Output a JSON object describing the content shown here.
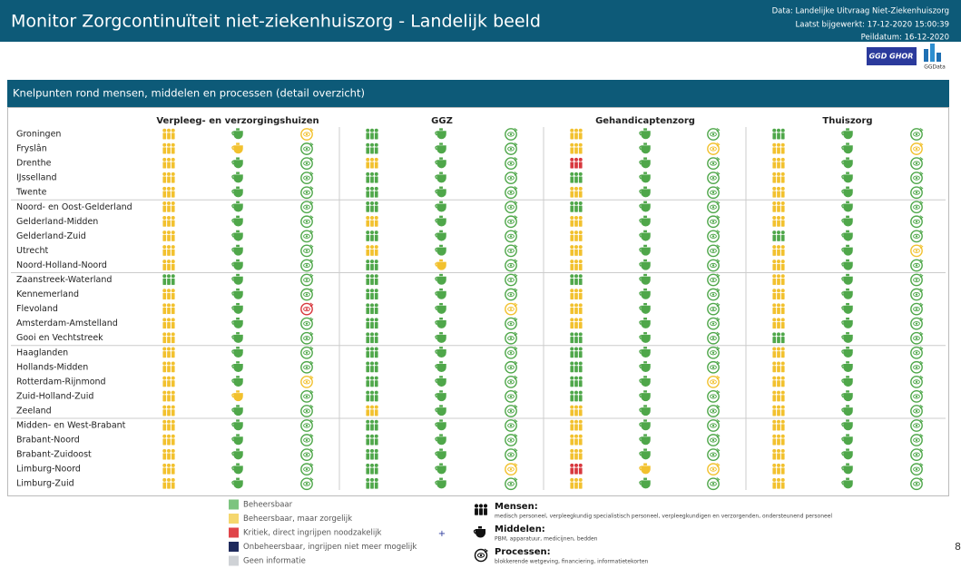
{
  "header": {
    "title": "Monitor Zorgcontinuïteit niet-ziekenhuiszorg - Landelijk beeld",
    "data_source": "Data: Landelijke Uitvraag Niet-Ziekenhuiszorg",
    "updated": "Laatst bijgewerkt: 17-12-2020 15:00:39",
    "reference_date": "Peildatum: 16-12-2020",
    "logos": [
      "GGD GHOR",
      "GGData"
    ]
  },
  "panel": {
    "title": "Knelpunten rond mensen, middelen en processen (detail overzicht)",
    "sectors": [
      "Verpleeg- en verzorgingshuizen",
      "GGZ",
      "Gehandicaptenzorg",
      "Thuiszorg"
    ],
    "groups": [
      [
        {
          "region": "Groningen",
          "status": [
            "#f2c12e",
            "#4fa74a",
            "#f2c12e",
            "#4fa74a",
            "#4fa74a",
            "#4fa74a",
            "#f2c12e",
            "#4fa74a",
            "#4fa74a",
            "#4fa74a",
            "#4fa74a",
            "#4fa74a"
          ]
        },
        {
          "region": "Fryslân",
          "status": [
            "#f2c12e",
            "#f2c12e",
            "#4fa74a",
            "#4fa74a",
            "#4fa74a",
            "#4fa74a",
            "#f2c12e",
            "#4fa74a",
            "#f2c12e",
            "#f2c12e",
            "#4fa74a",
            "#f2c12e"
          ]
        },
        {
          "region": "Drenthe",
          "status": [
            "#f2c12e",
            "#4fa74a",
            "#4fa74a",
            "#f2c12e",
            "#4fa74a",
            "#4fa74a",
            "#d8383e",
            "#4fa74a",
            "#4fa74a",
            "#f2c12e",
            "#4fa74a",
            "#4fa74a"
          ]
        },
        {
          "region": "IJsselland",
          "status": [
            "#f2c12e",
            "#4fa74a",
            "#4fa74a",
            "#4fa74a",
            "#4fa74a",
            "#4fa74a",
            "#4fa74a",
            "#4fa74a",
            "#4fa74a",
            "#f2c12e",
            "#4fa74a",
            "#4fa74a"
          ]
        },
        {
          "region": "Twente",
          "status": [
            "#f2c12e",
            "#4fa74a",
            "#4fa74a",
            "#4fa74a",
            "#4fa74a",
            "#4fa74a",
            "#f2c12e",
            "#4fa74a",
            "#4fa74a",
            "#f2c12e",
            "#4fa74a",
            "#4fa74a"
          ]
        }
      ],
      [
        {
          "region": "Noord- en Oost-Gelderland",
          "status": [
            "#f2c12e",
            "#4fa74a",
            "#4fa74a",
            "#4fa74a",
            "#4fa74a",
            "#4fa74a",
            "#4fa74a",
            "#4fa74a",
            "#4fa74a",
            "#f2c12e",
            "#4fa74a",
            "#4fa74a"
          ]
        },
        {
          "region": "Gelderland-Midden",
          "status": [
            "#f2c12e",
            "#4fa74a",
            "#4fa74a",
            "#f2c12e",
            "#4fa74a",
            "#4fa74a",
            "#f2c12e",
            "#4fa74a",
            "#4fa74a",
            "#f2c12e",
            "#4fa74a",
            "#4fa74a"
          ]
        },
        {
          "region": "Gelderland-Zuid",
          "status": [
            "#f2c12e",
            "#4fa74a",
            "#4fa74a",
            "#4fa74a",
            "#4fa74a",
            "#4fa74a",
            "#f2c12e",
            "#4fa74a",
            "#4fa74a",
            "#4fa74a",
            "#4fa74a",
            "#4fa74a"
          ]
        },
        {
          "region": "Utrecht",
          "status": [
            "#f2c12e",
            "#4fa74a",
            "#4fa74a",
            "#f2c12e",
            "#4fa74a",
            "#4fa74a",
            "#f2c12e",
            "#4fa74a",
            "#4fa74a",
            "#f2c12e",
            "#4fa74a",
            "#f2c12e"
          ]
        },
        {
          "region": "Noord-Holland-Noord",
          "status": [
            "#f2c12e",
            "#4fa74a",
            "#4fa74a",
            "#4fa74a",
            "#f2c12e",
            "#4fa74a",
            "#f2c12e",
            "#4fa74a",
            "#4fa74a",
            "#f2c12e",
            "#4fa74a",
            "#4fa74a"
          ]
        }
      ],
      [
        {
          "region": "Zaanstreek-Waterland",
          "status": [
            "#4fa74a",
            "#4fa74a",
            "#4fa74a",
            "#4fa74a",
            "#4fa74a",
            "#4fa74a",
            "#4fa74a",
            "#4fa74a",
            "#4fa74a",
            "#f2c12e",
            "#4fa74a",
            "#4fa74a"
          ]
        },
        {
          "region": "Kennemerland",
          "status": [
            "#f2c12e",
            "#4fa74a",
            "#4fa74a",
            "#4fa74a",
            "#4fa74a",
            "#4fa74a",
            "#f2c12e",
            "#4fa74a",
            "#4fa74a",
            "#f2c12e",
            "#4fa74a",
            "#4fa74a"
          ]
        },
        {
          "region": "Flevoland",
          "status": [
            "#f2c12e",
            "#4fa74a",
            "#d8383e",
            "#4fa74a",
            "#4fa74a",
            "#f2c12e",
            "#f2c12e",
            "#4fa74a",
            "#4fa74a",
            "#f2c12e",
            "#4fa74a",
            "#4fa74a"
          ]
        },
        {
          "region": "Amsterdam-Amstelland",
          "status": [
            "#f2c12e",
            "#4fa74a",
            "#4fa74a",
            "#4fa74a",
            "#4fa74a",
            "#4fa74a",
            "#f2c12e",
            "#4fa74a",
            "#4fa74a",
            "#f2c12e",
            "#4fa74a",
            "#4fa74a"
          ]
        },
        {
          "region": "Gooi en Vechtstreek",
          "status": [
            "#f2c12e",
            "#4fa74a",
            "#4fa74a",
            "#4fa74a",
            "#4fa74a",
            "#4fa74a",
            "#4fa74a",
            "#4fa74a",
            "#4fa74a",
            "#4fa74a",
            "#4fa74a",
            "#4fa74a"
          ]
        }
      ],
      [
        {
          "region": "Haaglanden",
          "status": [
            "#f2c12e",
            "#4fa74a",
            "#4fa74a",
            "#4fa74a",
            "#4fa74a",
            "#4fa74a",
            "#4fa74a",
            "#4fa74a",
            "#4fa74a",
            "#f2c12e",
            "#4fa74a",
            "#4fa74a"
          ]
        },
        {
          "region": "Hollands-Midden",
          "status": [
            "#f2c12e",
            "#4fa74a",
            "#4fa74a",
            "#4fa74a",
            "#4fa74a",
            "#4fa74a",
            "#4fa74a",
            "#4fa74a",
            "#4fa74a",
            "#f2c12e",
            "#4fa74a",
            "#4fa74a"
          ]
        },
        {
          "region": "Rotterdam-Rijnmond",
          "status": [
            "#f2c12e",
            "#4fa74a",
            "#f2c12e",
            "#4fa74a",
            "#4fa74a",
            "#4fa74a",
            "#4fa74a",
            "#4fa74a",
            "#f2c12e",
            "#f2c12e",
            "#4fa74a",
            "#4fa74a"
          ]
        },
        {
          "region": "Zuid-Holland-Zuid",
          "status": [
            "#f2c12e",
            "#f2c12e",
            "#4fa74a",
            "#4fa74a",
            "#4fa74a",
            "#4fa74a",
            "#4fa74a",
            "#4fa74a",
            "#4fa74a",
            "#f2c12e",
            "#4fa74a",
            "#4fa74a"
          ]
        },
        {
          "region": "Zeeland",
          "status": [
            "#f2c12e",
            "#4fa74a",
            "#4fa74a",
            "#f2c12e",
            "#4fa74a",
            "#4fa74a",
            "#f2c12e",
            "#4fa74a",
            "#4fa74a",
            "#f2c12e",
            "#4fa74a",
            "#4fa74a"
          ]
        }
      ],
      [
        {
          "region": "Midden- en West-Brabant",
          "status": [
            "#f2c12e",
            "#4fa74a",
            "#4fa74a",
            "#4fa74a",
            "#4fa74a",
            "#4fa74a",
            "#f2c12e",
            "#4fa74a",
            "#4fa74a",
            "#f2c12e",
            "#4fa74a",
            "#4fa74a"
          ]
        },
        {
          "region": "Brabant-Noord",
          "status": [
            "#f2c12e",
            "#4fa74a",
            "#4fa74a",
            "#4fa74a",
            "#4fa74a",
            "#4fa74a",
            "#f2c12e",
            "#4fa74a",
            "#4fa74a",
            "#f2c12e",
            "#4fa74a",
            "#4fa74a"
          ]
        },
        {
          "region": "Brabant-Zuidoost",
          "status": [
            "#f2c12e",
            "#4fa74a",
            "#4fa74a",
            "#4fa74a",
            "#4fa74a",
            "#4fa74a",
            "#f2c12e",
            "#4fa74a",
            "#4fa74a",
            "#f2c12e",
            "#4fa74a",
            "#4fa74a"
          ]
        },
        {
          "region": "Limburg-Noord",
          "status": [
            "#f2c12e",
            "#4fa74a",
            "#4fa74a",
            "#4fa74a",
            "#4fa74a",
            "#f2c12e",
            "#d8383e",
            "#f2c12e",
            "#f2c12e",
            "#f2c12e",
            "#4fa74a",
            "#4fa74a"
          ]
        },
        {
          "region": "Limburg-Zuid",
          "status": [
            "#f2c12e",
            "#4fa74a",
            "#4fa74a",
            "#4fa74a",
            "#4fa74a",
            "#4fa74a",
            "#f2c12e",
            "#4fa74a",
            "#4fa74a",
            "#f2c12e",
            "#4fa74a",
            "#4fa74a"
          ]
        }
      ]
    ],
    "legend": {
      "statuses": [
        {
          "label": "Beheersbaar",
          "color": "#7cc47f"
        },
        {
          "label": "Beheersbaar, maar zorgelijk",
          "color": "#f5d76e"
        },
        {
          "label": "Kritiek, direct ingrijpen noodzakelijk",
          "color": "#e0454a"
        },
        {
          "label": "Onbeheersbaar, ingrijpen niet meer mogelijk",
          "color": "#1f2a5c"
        },
        {
          "label": "Geen informatie",
          "color": "#cfd2d6"
        }
      ],
      "plus": "+",
      "icons": [
        {
          "title": "Mensen:",
          "description": "medisch personeel, verpleegkundig specialistisch personeel, verpleegkundigen en verzorgenden, ondersteunend personeel"
        },
        {
          "title": "Middelen:",
          "description": "PBM, apparatuur, medicijnen, bedden"
        },
        {
          "title": "Processen:",
          "description": "blokkerende wetgeving, financiering, informatietekorten"
        }
      ]
    }
  },
  "page_number": "8"
}
